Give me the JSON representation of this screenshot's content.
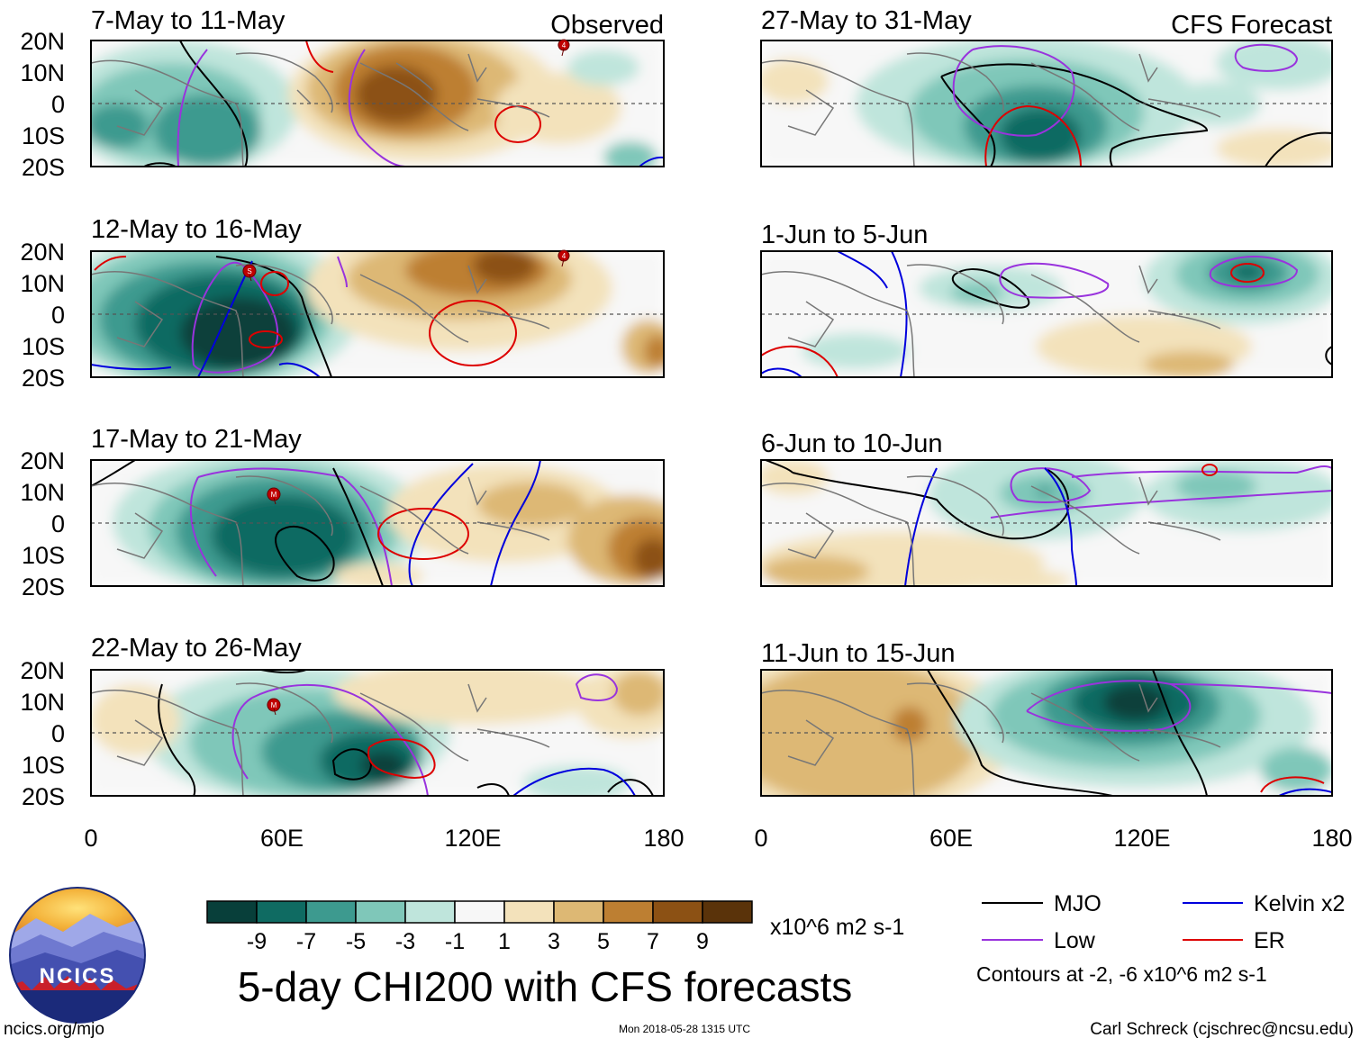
{
  "figure": {
    "main_title": "5-day CHI200 with CFS forecasts",
    "units": "x10^6 m2 s-1",
    "footer_left": "ncics.org/mjo",
    "footer_center": "Mon 2018-05-28 1315 UTC",
    "footer_right": "Carl Schreck (cjschrec@ncsu.edu)",
    "logo_text": "NCICS"
  },
  "columns": [
    {
      "label": "Observed"
    },
    {
      "label": "CFS Forecast"
    }
  ],
  "axes": {
    "lat_ticks": [
      "20N",
      "10N",
      "0",
      "10S",
      "20S"
    ],
    "lon_ticks": [
      "0",
      "60E",
      "120E",
      "180"
    ]
  },
  "panels": [
    {
      "col": 0,
      "title": "7-May to 11-May"
    },
    {
      "col": 0,
      "title": "12-May to 16-May"
    },
    {
      "col": 0,
      "title": "17-May to 21-May"
    },
    {
      "col": 0,
      "title": "22-May to 26-May"
    },
    {
      "col": 1,
      "title": "27-May to 31-May"
    },
    {
      "col": 1,
      "title": "1-Jun to 5-Jun"
    },
    {
      "col": 1,
      "title": "6-Jun to 10-Jun"
    },
    {
      "col": 1,
      "title": "11-Jun to 15-Jun"
    }
  ],
  "colorbar": {
    "labels": [
      "-9",
      "-7",
      "-5",
      "-3",
      "-1",
      "1",
      "3",
      "5",
      "7",
      "9"
    ],
    "colors": [
      "#083f3a",
      "#0f6b62",
      "#3d9a8f",
      "#7fc7b9",
      "#bfe5dc",
      "#f7f7f7",
      "#f3e2bb",
      "#ddb874",
      "#bd7f32",
      "#8c5114",
      "#5a330a"
    ]
  },
  "legend": {
    "items": [
      {
        "label": "MJO",
        "color": "#000000"
      },
      {
        "label": "Kelvin x2",
        "color": "#0000dd"
      },
      {
        "label": "Low",
        "color": "#9933dd"
      },
      {
        "label": "ER",
        "color": "#dd0000"
      }
    ],
    "note": "Contours at -2, -6 x10^6 m2 s-1"
  },
  "storm_markers": [
    "4",
    "4",
    "S",
    "M",
    "M"
  ]
}
